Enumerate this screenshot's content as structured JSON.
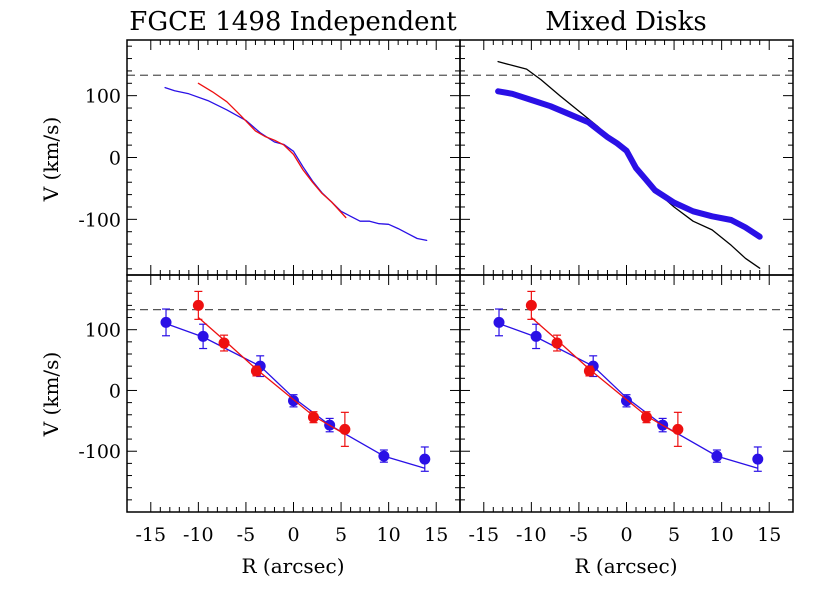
{
  "figure": {
    "titles": [
      "FGCE 1498 Independent",
      "Mixed Disks"
    ],
    "ylabel": "V (km/s)",
    "xlabel": "R (arcsec)",
    "colors": {
      "blue": "#2a10e6",
      "red": "#ee1010",
      "black": "#000000",
      "dash": "#555555"
    }
  },
  "chart_data": [
    {
      "panel": "top-left",
      "type": "line",
      "title": "FGCE 1498 Independent",
      "xlim": [
        -17.5,
        17.5
      ],
      "ylim": [
        -190,
        190
      ],
      "xticks": [
        -15,
        -10,
        -5,
        0,
        5,
        10,
        15
      ],
      "yticks": [
        -100,
        0,
        100
      ],
      "hline": 133,
      "series": [
        {
          "color": "blue",
          "x": [
            -13.5,
            -12.5,
            -11,
            -9,
            -7,
            -5,
            -3.5,
            -2,
            -1,
            0,
            1,
            2,
            3,
            4,
            5,
            6,
            7,
            8,
            9,
            10,
            11,
            12,
            13,
            14
          ],
          "y": [
            113,
            108,
            103,
            92,
            77,
            60,
            40,
            25,
            21,
            10,
            -15,
            -38,
            -57,
            -72,
            -87,
            -95,
            -103,
            -103,
            -107,
            -108,
            -115,
            -123,
            -131,
            -134
          ]
        },
        {
          "color": "red",
          "x": [
            -10,
            -8.5,
            -7,
            -5.5,
            -4,
            -3,
            -2,
            -1,
            0,
            1,
            2,
            3,
            4,
            5.5
          ],
          "y": [
            120,
            106,
            90,
            67,
            43,
            34,
            28,
            20,
            5,
            -20,
            -40,
            -58,
            -72,
            -97
          ]
        }
      ]
    },
    {
      "panel": "top-right",
      "type": "line",
      "title": "Mixed Disks",
      "xlim": [
        -17.5,
        17.5
      ],
      "ylim": [
        -190,
        190
      ],
      "xticks": [
        -15,
        -10,
        -5,
        0,
        5,
        10,
        15
      ],
      "yticks": [
        -100,
        0,
        100
      ],
      "hline": 133,
      "series": [
        {
          "color": "black",
          "x": [
            -13.5,
            -12,
            -10.5,
            -9,
            -7,
            -5,
            -3,
            -1.5,
            0,
            1.5,
            3,
            5,
            7,
            9,
            11,
            12.5,
            14
          ],
          "y": [
            155,
            149,
            143,
            126,
            100,
            75,
            50,
            27,
            13,
            -23,
            -53,
            -80,
            -103,
            -117,
            -142,
            -163,
            -179
          ]
        },
        {
          "color": "blue",
          "band": true,
          "x": [
            -13.5,
            -12,
            -10,
            -8,
            -6,
            -4,
            -2,
            -1,
            0,
            1,
            2,
            3,
            5,
            7,
            9,
            11,
            12.5,
            14
          ],
          "y": [
            107,
            103,
            93,
            83,
            70,
            57,
            33,
            23,
            11,
            -17,
            -35,
            -53,
            -73,
            -87,
            -95,
            -101,
            -113,
            -128
          ]
        }
      ]
    },
    {
      "panel": "bottom-left",
      "type": "scatter",
      "xlim": [
        -17.5,
        17.5
      ],
      "ylim": [
        -200,
        190
      ],
      "xticks": [
        -15,
        -10,
        -5,
        0,
        5,
        10,
        15
      ],
      "yticks": [
        -100,
        0,
        100
      ],
      "hline": 133,
      "series": [
        {
          "color": "blue",
          "points": [
            [
              -13.4,
              112,
              22
            ],
            [
              -9.5,
              89,
              20
            ],
            [
              -3.5,
              40,
              17
            ],
            [
              0,
              -17,
              10
            ],
            [
              3.8,
              -57,
              11
            ],
            [
              9.5,
              -108,
              10
            ],
            [
              13.8,
              -113,
              20
            ]
          ],
          "fit_x": [
            -13.4,
            -9.5,
            -3.5,
            0,
            3.8,
            9.5,
            13.8
          ],
          "fit_y": [
            110,
            88,
            40,
            -12,
            -57,
            -108,
            -128
          ]
        },
        {
          "color": "red",
          "points": [
            [
              -10,
              140,
              23
            ],
            [
              -7.3,
              78,
              13
            ],
            [
              -3.9,
              32,
              8
            ],
            [
              2.1,
              -44,
              9
            ],
            [
              5.4,
              -64,
              28
            ]
          ],
          "fit_x": [
            -10,
            -7.3,
            -3.9,
            2.1,
            5.4
          ],
          "fit_y": [
            120,
            83,
            35,
            -42,
            -72
          ]
        }
      ]
    },
    {
      "panel": "bottom-right",
      "type": "scatter",
      "xlim": [
        -17.5,
        17.5
      ],
      "ylim": [
        -200,
        190
      ],
      "xticks": [
        -15,
        -10,
        -5,
        0,
        5,
        10,
        15
      ],
      "yticks": [
        -100,
        0,
        100
      ],
      "hline": 133,
      "series": [
        {
          "color": "blue",
          "points": [
            [
              -13.4,
              112,
              22
            ],
            [
              -9.5,
              89,
              20
            ],
            [
              -3.5,
              40,
              17
            ],
            [
              0,
              -17,
              10
            ],
            [
              3.8,
              -57,
              11
            ],
            [
              9.5,
              -108,
              10
            ],
            [
              13.8,
              -113,
              20
            ]
          ],
          "fit_x": [
            -13.4,
            -9.5,
            -3.5,
            0,
            3.8,
            9.5,
            13.8
          ],
          "fit_y": [
            110,
            88,
            40,
            -12,
            -57,
            -108,
            -128
          ]
        },
        {
          "color": "red",
          "points": [
            [
              -10,
              140,
              23
            ],
            [
              -7.3,
              78,
              13
            ],
            [
              -3.9,
              32,
              8
            ],
            [
              2.1,
              -44,
              9
            ],
            [
              5.4,
              -64,
              28
            ]
          ],
          "fit_x": [
            -10,
            -7.3,
            -3.9,
            2.1,
            5.4
          ],
          "fit_y": [
            120,
            83,
            35,
            -42,
            -72
          ]
        }
      ]
    }
  ]
}
